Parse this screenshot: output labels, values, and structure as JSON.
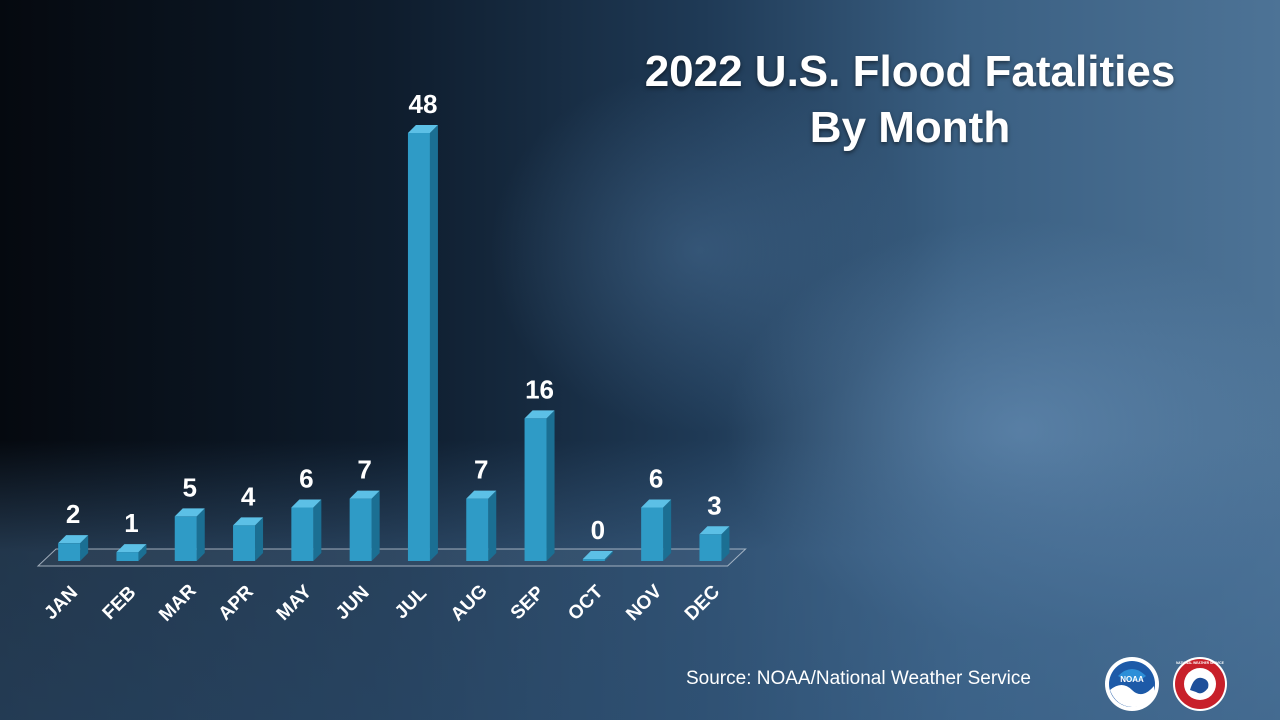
{
  "title": {
    "line1": "2022 U.S. Flood Fatalities",
    "line2": "By Month"
  },
  "source": "Source:   NOAA/National Weather Service",
  "logos": {
    "noaa_text": "NOAA",
    "nws_text": "NATIONAL WEATHER SERVICE"
  },
  "colors": {
    "bar_front": "#2f9bc6",
    "bar_side": "#1b6f93",
    "bar_top": "#5cc0e6",
    "label": "#ffffff"
  },
  "chart_data": {
    "type": "bar",
    "categories": [
      "JAN",
      "FEB",
      "MAR",
      "APR",
      "MAY",
      "JUN",
      "JUL",
      "AUG",
      "SEP",
      "OCT",
      "NOV",
      "DEC"
    ],
    "values": [
      2,
      1,
      5,
      4,
      6,
      7,
      48,
      7,
      16,
      0,
      6,
      3
    ],
    "title": "2022 U.S. Flood Fatalities By Month",
    "xlabel": "",
    "ylabel": "",
    "ylim": [
      0,
      48
    ],
    "grid": false,
    "legend": "none",
    "data_labels": true
  }
}
